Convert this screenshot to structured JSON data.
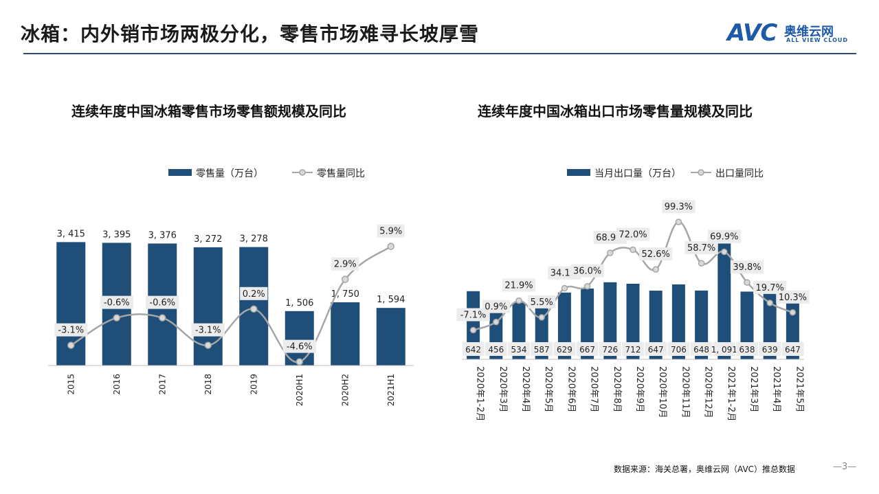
{
  "header": {
    "title": "冰箱：内外销市场两极分化，零售市场难寻长坡厚雪",
    "logo_text": "AVC",
    "logo_cn": "奥维云网",
    "logo_en": "ALL VIEW CLOUD"
  },
  "colors": {
    "bar": "#1f4e79",
    "line": "#a6a6a6",
    "accent": "#1f5aa6"
  },
  "chart_data": [
    {
      "type": "bar",
      "title": "连续年度中国冰箱零售市场零售额规模及同比",
      "legend": {
        "bar": "零售量（万台）",
        "line": "零售量同比"
      },
      "categories": [
        "2015",
        "2016",
        "2017",
        "2018",
        "2019",
        "2020H1",
        "2020H2",
        "2021H1"
      ],
      "series": [
        {
          "name": "零售量（万台）",
          "values": [
            3415,
            3395,
            3376,
            3272,
            3278,
            1506,
            1750,
            1594
          ],
          "labels": [
            "3, 415",
            "3, 395",
            "3, 376",
            "3, 272",
            "3, 278",
            "1, 506",
            "1, 750",
            "1, 594"
          ]
        },
        {
          "name": "零售量同比",
          "values": [
            -3.1,
            -0.6,
            -0.6,
            -3.1,
            0.2,
            -4.6,
            2.9,
            5.9
          ],
          "labels": [
            "-3.1%",
            "-0.6%",
            "-0.6%",
            "-3.1%",
            "0.2%",
            "-4.6%",
            "2.9%",
            "5.9%"
          ]
        }
      ]
    },
    {
      "type": "bar",
      "title": "连续年度中国冰箱出口市场零售量规模及同比",
      "legend": {
        "bar": "当月出口量（万台）",
        "line": "出口量同比"
      },
      "categories": [
        "2020年1-2月",
        "2020年3月",
        "2020年4月",
        "2020年5月",
        "2020年6月",
        "2020年7月",
        "2020年8月",
        "2020年9月",
        "2020年10月",
        "2020年11月",
        "2020年12月",
        "2021年1-2月",
        "2021年3月",
        "2021年4月",
        "2021年5月"
      ],
      "series": [
        {
          "name": "当月出口量（万台）",
          "values": [
            642,
            456,
            534,
            587,
            629,
            667,
            726,
            712,
            647,
            706,
            648,
            1091,
            638,
            639,
            647
          ],
          "labels": [
            "642",
            "456",
            "534",
            "587",
            "629",
            "667",
            "726",
            "712",
            "647",
            "706",
            "648",
            "1, 091",
            "638",
            "639",
            "647"
          ]
        },
        {
          "name": "出口量同比",
          "values": [
            -7.1,
            0.9,
            21.9,
            5.5,
            34.1,
            36.0,
            68.9,
            72.0,
            52.6,
            99.3,
            58.7,
            69.9,
            39.8,
            19.7,
            10.3
          ],
          "labels": [
            "-7.1%",
            "0.9%",
            "21.9%",
            "5.5%",
            "34.1%",
            "36.0%",
            "68.9%",
            "72.0%",
            "52.6%",
            "99.3%",
            "58.7%",
            "69.9%",
            "39.8%",
            "19.7%",
            "10.3%"
          ]
        }
      ]
    }
  ],
  "footer": {
    "source": "数据来源：海关总署，奥维云网（AVC）推总数据",
    "page": "—3—"
  }
}
